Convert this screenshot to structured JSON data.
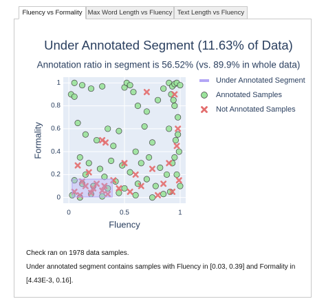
{
  "tabs": [
    "Fluency vs Formality",
    "Max Word Length vs Fluency",
    "Text Length vs Fluency"
  ],
  "chart_data": {
    "type": "scatter",
    "title": "Under Annotated Segment (11.63% of Data)",
    "subtitle": "Annotation ratio in segment is 56.52% (vs. 89.9% in whole data)",
    "x_label": "Fluency",
    "y_label": "Formality",
    "xlim": [
      -0.05,
      1.05
    ],
    "ylim": [
      -0.05,
      1.05
    ],
    "xticks": [
      0,
      0.5,
      1
    ],
    "yticks": [
      0,
      0.2,
      0.4,
      0.6,
      0.8,
      1
    ],
    "grid": true,
    "segment": {
      "name": "Under Annotated Segment",
      "color": "#b3a6f5",
      "x": [
        0.03,
        0.39
      ],
      "y": [
        0.00443,
        0.16
      ]
    },
    "series": [
      {
        "name": "Annotated Samples",
        "color": "#9be39b",
        "marker": "circle",
        "x": [
          0.05,
          0.12,
          0.2,
          0.3,
          0.5,
          0.52,
          0.55,
          0.58,
          0.85,
          0.9,
          0.93,
          0.95,
          0.97,
          1.0,
          0.02,
          0.05,
          0.62,
          0.7,
          0.8,
          0.08,
          0.15,
          0.25,
          0.35,
          0.4,
          0.45,
          0.6,
          0.68,
          0.75,
          0.1,
          0.18,
          0.28,
          0.38,
          0.48,
          0.55,
          0.65,
          0.72,
          0.82,
          0.05,
          0.12,
          0.22,
          0.32,
          0.42,
          0.5,
          0.62,
          0.7,
          0.78,
          0.88,
          0.92,
          0.95,
          0.98,
          0.9,
          0.96,
          0.99,
          0.93,
          0.97,
          1.0,
          0.91,
          0.94,
          0.98,
          0.95,
          0.03,
          0.1,
          0.2,
          0.3,
          0.45,
          0.6,
          0.75,
          0.85,
          0.15,
          0.35
        ],
        "values": [
          1.0,
          0.98,
          0.95,
          0.97,
          0.96,
          1.0,
          0.98,
          0.92,
          0.95,
          1.0,
          0.97,
          0.99,
          1.0,
          0.98,
          0.9,
          0.88,
          0.8,
          0.75,
          0.85,
          0.65,
          0.55,
          0.5,
          0.6,
          0.45,
          0.58,
          0.4,
          0.62,
          0.48,
          0.35,
          0.3,
          0.25,
          0.32,
          0.28,
          0.22,
          0.3,
          0.35,
          0.26,
          0.15,
          0.12,
          0.1,
          0.18,
          0.14,
          0.08,
          0.12,
          0.16,
          0.1,
          0.2,
          0.9,
          0.8,
          0.7,
          0.6,
          0.5,
          0.4,
          0.3,
          0.2,
          0.1,
          0.05,
          0.85,
          0.55,
          0.35,
          0.02,
          0.0,
          0.03,
          0.01,
          0.04,
          0.02,
          0.0,
          0.03,
          0.2,
          0.08
        ]
      },
      {
        "name": "Not Annotated Samples",
        "color": "#e36d6d",
        "marker": "x",
        "x": [
          0.05,
          0.1,
          0.15,
          0.2,
          0.25,
          0.3,
          0.35,
          0.12,
          0.22,
          0.32,
          0.3,
          0.33,
          0.5,
          0.08,
          0.18,
          0.7,
          0.95,
          0.98,
          0.9,
          0.97,
          0.99,
          0.93,
          0.55,
          0.65,
          0.8,
          0.85,
          0.6,
          0.45,
          0.4,
          0.75
        ],
        "values": [
          0.05,
          0.02,
          0.1,
          0.04,
          0.12,
          0.06,
          0.03,
          0.14,
          0.08,
          0.1,
          0.5,
          0.48,
          0.3,
          0.28,
          0.22,
          0.92,
          0.9,
          0.6,
          0.3,
          0.45,
          0.15,
          0.05,
          0.05,
          0.1,
          0.02,
          0.12,
          0.2,
          0.08,
          0.15,
          0.25
        ]
      }
    ]
  },
  "notes": [
    "Check ran on 1978 data samples.",
    "Under annotated segment contains samples with Fluency in [0.03, 0.39] and Formality in [4.43E-3, 0.16]."
  ]
}
